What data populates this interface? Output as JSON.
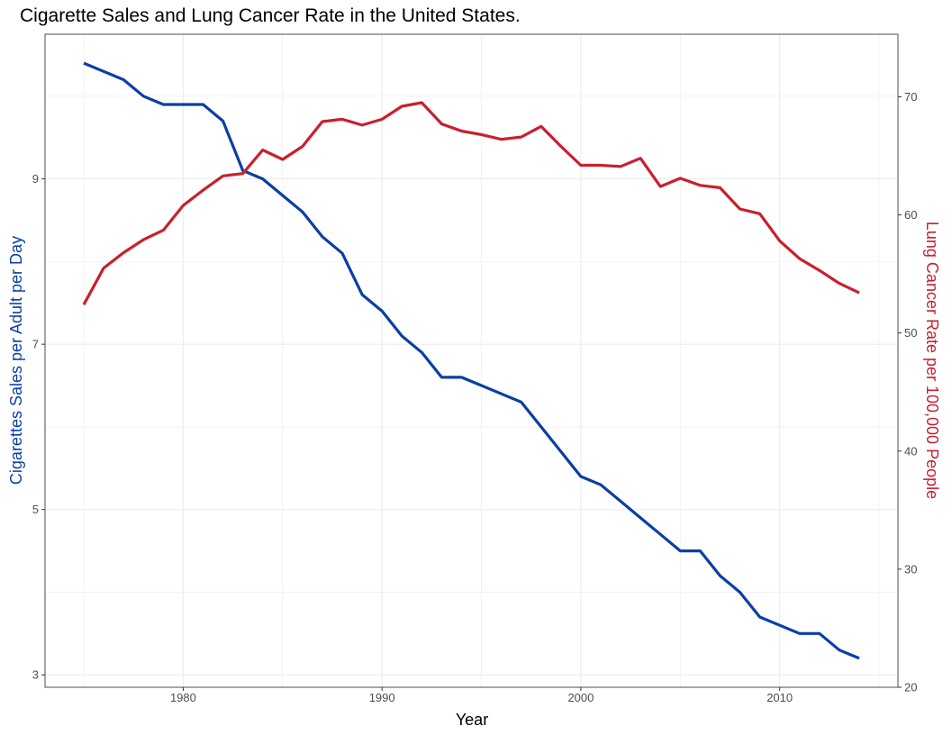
{
  "chart_data": {
    "type": "line",
    "title": "Cigarette Sales and Lung Cancer Rate in the United States.",
    "xlabel": "Year",
    "ylabel_left": "Cigarettes Sales per Adult per Day",
    "ylabel_right": "Lung Cancer Rate per 100,000 People",
    "x": [
      1975,
      1976,
      1977,
      1978,
      1979,
      1980,
      1981,
      1982,
      1983,
      1984,
      1985,
      1986,
      1987,
      1988,
      1989,
      1990,
      1991,
      1992,
      1993,
      1994,
      1995,
      1996,
      1997,
      1998,
      1999,
      2000,
      2001,
      2002,
      2003,
      2004,
      2005,
      2006,
      2007,
      2008,
      2009,
      2010,
      2011,
      2012,
      2013,
      2014
    ],
    "xlim": [
      1973.05,
      2015.95
    ],
    "xticks": [
      1980,
      1990,
      2000,
      2010
    ],
    "ylim_left": [
      2.85,
      10.75
    ],
    "yticks_left": [
      3,
      5,
      7,
      9
    ],
    "ylim_right": [
      20,
      75.3
    ],
    "yticks_right": [
      20,
      30,
      40,
      50,
      60,
      70
    ],
    "grid": true,
    "series": [
      {
        "axis": "left",
        "color": "#0a3fa4",
        "values": [
          10.4,
          10.3,
          10.2,
          10.0,
          9.9,
          9.9,
          9.9,
          9.7,
          9.1,
          9.0,
          8.8,
          8.6,
          8.3,
          8.1,
          7.6,
          7.4,
          7.1,
          6.9,
          6.6,
          6.6,
          6.5,
          6.4,
          6.3,
          6.0,
          5.7,
          5.4,
          5.3,
          5.1,
          4.9,
          4.7,
          4.5,
          4.5,
          4.2,
          4.0,
          3.7,
          3.6,
          3.5,
          3.5,
          3.3,
          3.2
        ]
      },
      {
        "axis": "right",
        "color": "#c8202e",
        "values": [
          52.4,
          55.5,
          56.8,
          57.9,
          58.7,
          60.8,
          62.1,
          63.3,
          63.5,
          65.5,
          64.7,
          65.8,
          67.9,
          68.1,
          67.6,
          68.1,
          69.2,
          69.5,
          67.7,
          67.1,
          66.8,
          66.4,
          66.6,
          67.5,
          65.8,
          64.2,
          64.2,
          64.1,
          64.8,
          62.4,
          63.1,
          62.5,
          62.3,
          60.5,
          60.1,
          57.8,
          56.3,
          55.3,
          54.2,
          53.4
        ]
      }
    ]
  }
}
